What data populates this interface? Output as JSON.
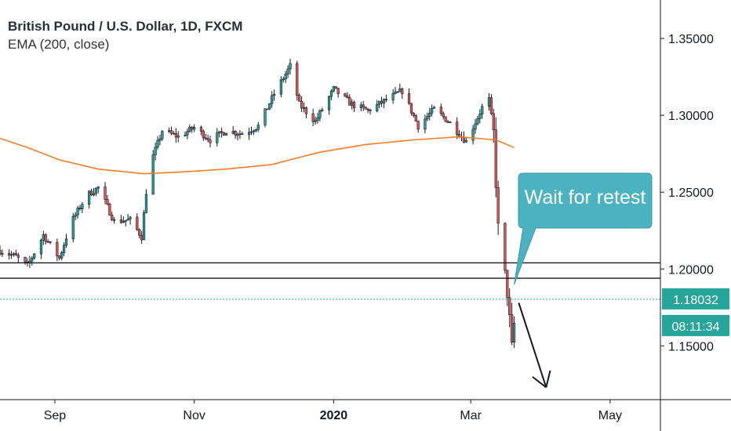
{
  "header": {
    "symbol_title": "British Pound / U.S. Dollar, 1D, FXCM",
    "indicator_label": "EMA (200, close)"
  },
  "chart_data": {
    "type": "candlestick",
    "title": "British Pound / U.S. Dollar, 1D, FXCM",
    "indicator": "EMA (200, close)",
    "ylim": [
      1.115,
      1.375
    ],
    "y_ticks": [
      {
        "value": 1.35,
        "label": "1.35000"
      },
      {
        "value": 1.3,
        "label": "1.30000"
      },
      {
        "value": 1.25,
        "label": "1.25000"
      },
      {
        "value": 1.2,
        "label": "1.20000"
      },
      {
        "value": 1.15,
        "label": "1.15000"
      }
    ],
    "x_ticks": [
      {
        "label": "Sep",
        "date": "2019-09-01"
      },
      {
        "label": "Nov",
        "date": "2019-11-01"
      },
      {
        "label": "2020",
        "date": "2020-01-01",
        "bold": true
      },
      {
        "label": "Mar",
        "date": "2020-03-01"
      },
      {
        "label": "May",
        "date": "2020-05-01"
      }
    ],
    "xlim": [
      "2019-08-08",
      "2020-05-23"
    ],
    "price_path": [
      [
        "2019-08-08",
        1.212
      ],
      [
        "2019-08-15",
        1.208
      ],
      [
        "2019-08-20",
        1.202
      ],
      [
        "2019-08-27",
        1.222
      ],
      [
        "2019-09-03",
        1.207
      ],
      [
        "2019-09-08",
        1.23
      ],
      [
        "2019-09-15",
        1.248
      ],
      [
        "2019-09-20",
        1.253
      ],
      [
        "2019-09-27",
        1.231
      ],
      [
        "2019-10-04",
        1.232
      ],
      [
        "2019-10-09",
        1.221
      ],
      [
        "2019-10-12",
        1.265
      ],
      [
        "2019-10-18",
        1.29
      ],
      [
        "2019-10-25",
        1.286
      ],
      [
        "2019-11-01",
        1.292
      ],
      [
        "2019-11-08",
        1.284
      ],
      [
        "2019-11-15",
        1.29
      ],
      [
        "2019-11-22",
        1.288
      ],
      [
        "2019-11-29",
        1.293
      ],
      [
        "2019-12-06",
        1.314
      ],
      [
        "2019-12-13",
        1.332
      ],
      [
        "2019-12-17",
        1.307
      ],
      [
        "2019-12-24",
        1.296
      ],
      [
        "2020-01-01",
        1.317
      ],
      [
        "2020-01-09",
        1.307
      ],
      [
        "2020-01-16",
        1.303
      ],
      [
        "2020-01-24",
        1.31
      ],
      [
        "2020-01-31",
        1.316
      ],
      [
        "2020-02-07",
        1.293
      ],
      [
        "2020-02-14",
        1.304
      ],
      [
        "2020-02-21",
        1.295
      ],
      [
        "2020-02-28",
        1.283
      ],
      [
        "2020-03-06",
        1.305
      ],
      [
        "2020-03-09",
        1.31
      ],
      [
        "2020-03-11",
        1.288
      ],
      [
        "2020-03-13",
        1.226
      ],
      [
        "2020-03-17",
        1.185
      ],
      [
        "2020-03-19",
        1.148
      ],
      [
        "2020-03-21",
        1.18
      ]
    ],
    "ema_200": [
      [
        "2019-08-08",
        1.285
      ],
      [
        "2019-08-20",
        1.279
      ],
      [
        "2019-09-03",
        1.271
      ],
      [
        "2019-09-20",
        1.265
      ],
      [
        "2019-10-10",
        1.262
      ],
      [
        "2019-10-25",
        1.263
      ],
      [
        "2019-11-15",
        1.265
      ],
      [
        "2019-12-05",
        1.268
      ],
      [
        "2019-12-26",
        1.276
      ],
      [
        "2020-01-15",
        1.281
      ],
      [
        "2020-02-05",
        1.284
      ],
      [
        "2020-02-25",
        1.286
      ],
      [
        "2020-03-12",
        1.284
      ],
      [
        "2020-03-20",
        1.279
      ]
    ],
    "horizontal_levels": [
      1.204,
      1.194
    ],
    "current_price": {
      "value": 1.18032,
      "label": "1.18032",
      "countdown": "08:11:34"
    },
    "annotations": [
      {
        "type": "callout",
        "text": "Wait for retest",
        "target": [
          "2020-03-20",
          1.19
        ]
      },
      {
        "type": "arrow",
        "from": [
          "2020-03-22",
          1.178
        ],
        "to": [
          "2020-04-03",
          1.123
        ]
      }
    ],
    "colors": {
      "up": "#26a69a",
      "down": "#ef5350",
      "ema": "#f57c29",
      "callout": "#4bb3c0",
      "price_label": "#26a69a"
    },
    "grid": false
  }
}
